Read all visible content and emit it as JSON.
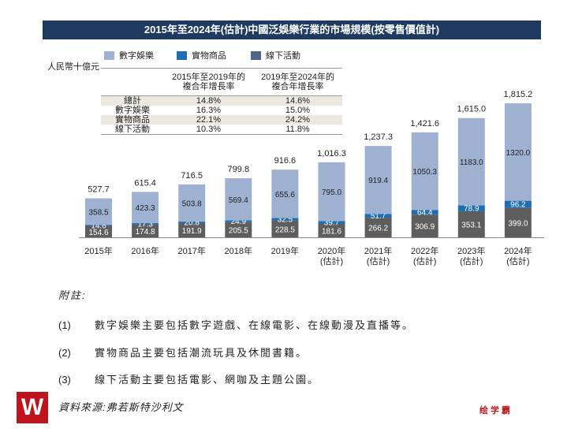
{
  "chart_data": {
    "type": "bar",
    "stacked": true,
    "title": "2015年至2024年(估計)中國泛娛樂行業的市場規模(按零售價值計)",
    "ylabel": "人民幣十億元",
    "categories": [
      "2015年",
      "2016年",
      "2017年",
      "2018年",
      "2019年",
      "2020年\n(估計)",
      "2021年\n(估計)",
      "2022年\n(估計)",
      "2023年\n(估計)",
      "2024年\n(估計)"
    ],
    "series": [
      {
        "name": "線下活動",
        "color": "#5e5e5e",
        "values": [
          154.6,
          174.8,
          191.9,
          205.5,
          228.5,
          181.6,
          266.2,
          306.9,
          353.1,
          399.0
        ]
      },
      {
        "name": "實物商品",
        "color": "#1f6db3",
        "values": [
          14.6,
          17.3,
          20.8,
          24.9,
          32.5,
          39.7,
          51.7,
          64.4,
          78.9,
          96.2
        ]
      },
      {
        "name": "數字娛樂",
        "color": "#9fb1d0",
        "values": [
          358.5,
          423.3,
          503.8,
          569.4,
          655.6,
          795.0,
          919.4,
          1050.3,
          1183.0,
          1320.0
        ]
      }
    ],
    "totals": [
      "527.7",
      "615.4",
      "716.5",
      "799.8",
      "916.6",
      "1,016.3",
      "1,237.3",
      "1,421.6",
      "1,615.0",
      "1,815.2"
    ],
    "legend": [
      "數字娛樂",
      "實物商品",
      "線下活動"
    ],
    "ylim": [
      0,
      1900
    ]
  },
  "cagr_table": {
    "headers": [
      "",
      "2015年至2019年的\n複合年增長率",
      "2019年至2024年的\n複合年增長率"
    ],
    "rows": [
      [
        "總計",
        "14.8%",
        "14.6%"
      ],
      [
        "數字娛樂",
        "16.3%",
        "15.0%"
      ],
      [
        "實物商品",
        "22.1%",
        "24.2%"
      ],
      [
        "線下活動",
        "10.3%",
        "11.8%"
      ]
    ]
  },
  "notes": {
    "heading": "附註:",
    "items": [
      [
        "(1)",
        "數字娛樂主要包括數字遊戲、在線電影、在線動漫及直播等。"
      ],
      [
        "(2)",
        "實物商品主要包括潮流玩具及休閒書籍。"
      ],
      [
        "(3)",
        "線下活動主要包括電影、網咖及主題公園。"
      ]
    ]
  },
  "source": "資料來源:弗若斯特沙利文",
  "logo": "W",
  "watermark": "绘学霸"
}
